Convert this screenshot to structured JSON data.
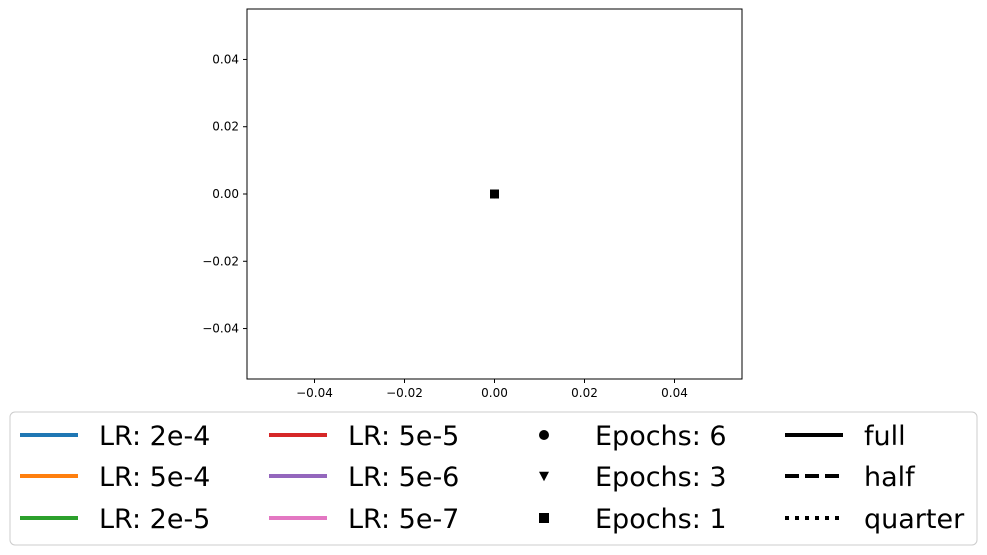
{
  "chart_data": {
    "type": "scatter",
    "title": "",
    "xlabel": "",
    "ylabel": "",
    "xlim": [
      -0.055,
      0.055
    ],
    "ylim": [
      -0.055,
      0.055
    ],
    "grid": false,
    "xticks": [
      -0.04,
      -0.02,
      0.0,
      0.02,
      0.04
    ],
    "yticks": [
      -0.04,
      -0.02,
      0.0,
      0.02,
      0.04
    ],
    "xtick_labels": [
      "−0.04",
      "−0.02",
      "0.00",
      "0.02",
      "0.04"
    ],
    "ytick_labels": [
      "−0.04",
      "−0.02",
      "0.00",
      "0.02",
      "0.04"
    ],
    "points": [
      {
        "x": 0.0,
        "y": 0.0,
        "marker": "circle",
        "color": "#000000"
      },
      {
        "x": 0.0,
        "y": 0.0,
        "marker": "triangle-down",
        "color": "#000000"
      },
      {
        "x": 0.0,
        "y": 0.0,
        "marker": "square",
        "color": "#000000"
      }
    ],
    "legend": {
      "placement": "bottom",
      "columns": [
        [
          {
            "label": "LR: 2e-4",
            "kind": "line",
            "color": "#1f77b4",
            "style": "solid"
          },
          {
            "label": "LR: 5e-4",
            "kind": "line",
            "color": "#ff7f0e",
            "style": "solid"
          },
          {
            "label": "LR: 2e-5",
            "kind": "line",
            "color": "#2ca02c",
            "style": "solid"
          }
        ],
        [
          {
            "label": "LR: 5e-5",
            "kind": "line",
            "color": "#d62728",
            "style": "solid"
          },
          {
            "label": "LR: 5e-6",
            "kind": "line",
            "color": "#9467bd",
            "style": "solid"
          },
          {
            "label": "LR: 5e-7",
            "kind": "line",
            "color": "#e377c2",
            "style": "solid"
          }
        ],
        [
          {
            "label": "Epochs: 6",
            "kind": "marker",
            "marker": "circle",
            "color": "#000000"
          },
          {
            "label": "Epochs: 3",
            "kind": "marker",
            "marker": "triangle-down",
            "color": "#000000"
          },
          {
            "label": "Epochs: 1",
            "kind": "marker",
            "marker": "square",
            "color": "#000000"
          }
        ],
        [
          {
            "label": "full",
            "kind": "line",
            "color": "#000000",
            "style": "solid"
          },
          {
            "label": "half",
            "kind": "line",
            "color": "#000000",
            "style": "dashed"
          },
          {
            "label": "quarter",
            "kind": "line",
            "color": "#000000",
            "style": "dotted"
          }
        ]
      ]
    }
  }
}
